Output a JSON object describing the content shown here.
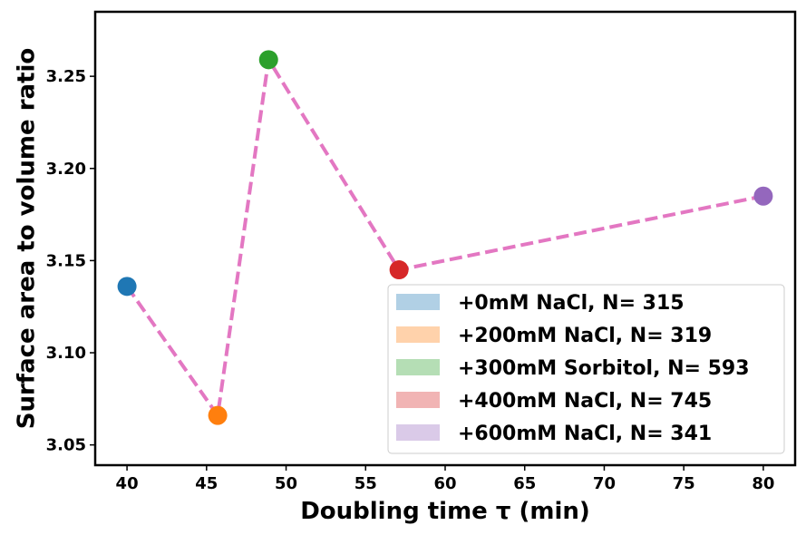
{
  "chart_data": {
    "type": "scatter",
    "xlabel": "Doubling time τ (min)",
    "ylabel": "Surface area to volume ratio",
    "xlim": [
      38,
      82
    ],
    "ylim": [
      3.039,
      3.285
    ],
    "xticks": [
      40,
      45,
      50,
      55,
      60,
      65,
      70,
      75,
      80
    ],
    "yticks": [
      3.05,
      3.1,
      3.15,
      3.2,
      3.25
    ],
    "grid": false,
    "legend_position": "lower-right",
    "series": [
      {
        "name": "+0mM NaCl, N= 315",
        "x": 40.0,
        "y": 3.136,
        "color": "#1f77b4"
      },
      {
        "name": "+200mM NaCl, N= 319",
        "x": 45.7,
        "y": 3.066,
        "color": "#ff7f0e"
      },
      {
        "name": "+300mM Sorbitol, N= 593",
        "x": 48.9,
        "y": 3.259,
        "color": "#2ca02c"
      },
      {
        "name": "+400mM NaCl, N= 745",
        "x": 57.1,
        "y": 3.145,
        "color": "#d62728"
      },
      {
        "name": "+600mM NaCl, N= 341",
        "x": 80.0,
        "y": 3.185,
        "color": "#9467bd"
      }
    ],
    "connector": {
      "style": "dashed",
      "color": "#e377c2"
    }
  }
}
